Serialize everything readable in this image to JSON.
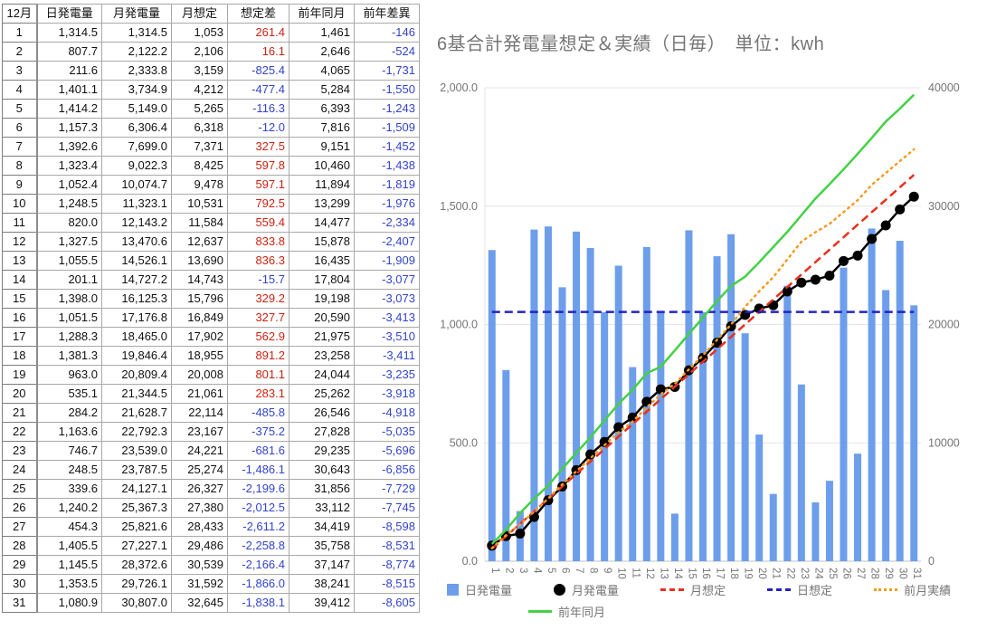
{
  "colors": {
    "positive": "#cc2211",
    "negative": "#3344cc",
    "axis_text": "#757575",
    "grid": "#e3e3e3",
    "axis_line": "#c2c2c2"
  },
  "table": {
    "month_label": "12月",
    "headers": [
      "日発電量",
      "月発電量",
      "月想定",
      "想定差",
      "前年同月",
      "前年差異"
    ],
    "rows": [
      {
        "day": "1",
        "daily": "1,314.5",
        "monthly": "1,314.5",
        "expected": "1,053",
        "diff": "261.4",
        "prev_year": "1,461",
        "prev_diff": "-146"
      },
      {
        "day": "2",
        "daily": "807.7",
        "monthly": "2,122.2",
        "expected": "2,106",
        "diff": "16.1",
        "prev_year": "2,646",
        "prev_diff": "-524"
      },
      {
        "day": "3",
        "daily": "211.6",
        "monthly": "2,333.8",
        "expected": "3,159",
        "diff": "-825.4",
        "prev_year": "4,065",
        "prev_diff": "-1,731"
      },
      {
        "day": "4",
        "daily": "1,401.1",
        "monthly": "3,734.9",
        "expected": "4,212",
        "diff": "-477.4",
        "prev_year": "5,284",
        "prev_diff": "-1,550"
      },
      {
        "day": "5",
        "daily": "1,414.2",
        "monthly": "5,149.0",
        "expected": "5,265",
        "diff": "-116.3",
        "prev_year": "6,393",
        "prev_diff": "-1,243"
      },
      {
        "day": "6",
        "daily": "1,157.3",
        "monthly": "6,306.4",
        "expected": "6,318",
        "diff": "-12.0",
        "prev_year": "7,816",
        "prev_diff": "-1,509"
      },
      {
        "day": "7",
        "daily": "1,392.6",
        "monthly": "7,699.0",
        "expected": "7,371",
        "diff": "327.5",
        "prev_year": "9,151",
        "prev_diff": "-1,452"
      },
      {
        "day": "8",
        "daily": "1,323.4",
        "monthly": "9,022.3",
        "expected": "8,425",
        "diff": "597.8",
        "prev_year": "10,460",
        "prev_diff": "-1,438"
      },
      {
        "day": "9",
        "daily": "1,052.4",
        "monthly": "10,074.7",
        "expected": "9,478",
        "diff": "597.1",
        "prev_year": "11,894",
        "prev_diff": "-1,819"
      },
      {
        "day": "10",
        "daily": "1,248.5",
        "monthly": "11,323.1",
        "expected": "10,531",
        "diff": "792.5",
        "prev_year": "13,299",
        "prev_diff": "-1,976"
      },
      {
        "day": "11",
        "daily": "820.0",
        "monthly": "12,143.2",
        "expected": "11,584",
        "diff": "559.4",
        "prev_year": "14,477",
        "prev_diff": "-2,334"
      },
      {
        "day": "12",
        "daily": "1,327.5",
        "monthly": "13,470.6",
        "expected": "12,637",
        "diff": "833.8",
        "prev_year": "15,878",
        "prev_diff": "-2,407"
      },
      {
        "day": "13",
        "daily": "1,055.5",
        "monthly": "14,526.1",
        "expected": "13,690",
        "diff": "836.3",
        "prev_year": "16,435",
        "prev_diff": "-1,909"
      },
      {
        "day": "14",
        "daily": "201.1",
        "monthly": "14,727.2",
        "expected": "14,743",
        "diff": "-15.7",
        "prev_year": "17,804",
        "prev_diff": "-3,077"
      },
      {
        "day": "15",
        "daily": "1,398.0",
        "monthly": "16,125.3",
        "expected": "15,796",
        "diff": "329.2",
        "prev_year": "19,198",
        "prev_diff": "-3,073"
      },
      {
        "day": "16",
        "daily": "1,051.5",
        "monthly": "17,176.8",
        "expected": "16,849",
        "diff": "327.7",
        "prev_year": "20,590",
        "prev_diff": "-3,413"
      },
      {
        "day": "17",
        "daily": "1,288.3",
        "monthly": "18,465.0",
        "expected": "17,902",
        "diff": "562.9",
        "prev_year": "21,975",
        "prev_diff": "-3,510"
      },
      {
        "day": "18",
        "daily": "1,381.3",
        "monthly": "19,846.4",
        "expected": "18,955",
        "diff": "891.2",
        "prev_year": "23,258",
        "prev_diff": "-3,411"
      },
      {
        "day": "19",
        "daily": "963.0",
        "monthly": "20,809.4",
        "expected": "20,008",
        "diff": "801.1",
        "prev_year": "24,044",
        "prev_diff": "-3,235"
      },
      {
        "day": "20",
        "daily": "535.1",
        "monthly": "21,344.5",
        "expected": "21,061",
        "diff": "283.1",
        "prev_year": "25,262",
        "prev_diff": "-3,918"
      },
      {
        "day": "21",
        "daily": "284.2",
        "monthly": "21,628.7",
        "expected": "22,114",
        "diff": "-485.8",
        "prev_year": "26,546",
        "prev_diff": "-4,918"
      },
      {
        "day": "22",
        "daily": "1,163.6",
        "monthly": "22,792.3",
        "expected": "23,167",
        "diff": "-375.2",
        "prev_year": "27,828",
        "prev_diff": "-5,035"
      },
      {
        "day": "23",
        "daily": "746.7",
        "monthly": "23,539.0",
        "expected": "24,221",
        "diff": "-681.6",
        "prev_year": "29,235",
        "prev_diff": "-5,696"
      },
      {
        "day": "24",
        "daily": "248.5",
        "monthly": "23,787.5",
        "expected": "25,274",
        "diff": "-1,486.1",
        "prev_year": "30,643",
        "prev_diff": "-6,856"
      },
      {
        "day": "25",
        "daily": "339.6",
        "monthly": "24,127.1",
        "expected": "26,327",
        "diff": "-2,199.6",
        "prev_year": "31,856",
        "prev_diff": "-7,729"
      },
      {
        "day": "26",
        "daily": "1,240.2",
        "monthly": "25,367.3",
        "expected": "27,380",
        "diff": "-2,012.5",
        "prev_year": "33,112",
        "prev_diff": "-7,745"
      },
      {
        "day": "27",
        "daily": "454.3",
        "monthly": "25,821.6",
        "expected": "28,433",
        "diff": "-2,611.2",
        "prev_year": "34,419",
        "prev_diff": "-8,598"
      },
      {
        "day": "28",
        "daily": "1,405.5",
        "monthly": "27,227.1",
        "expected": "29,486",
        "diff": "-2,258.8",
        "prev_year": "35,758",
        "prev_diff": "-8,531"
      },
      {
        "day": "29",
        "daily": "1,145.5",
        "monthly": "28,372.6",
        "expected": "30,539",
        "diff": "-2,166.4",
        "prev_year": "37,147",
        "prev_diff": "-8,774"
      },
      {
        "day": "30",
        "daily": "1,353.5",
        "monthly": "29,726.1",
        "expected": "31,592",
        "diff": "-1,866.0",
        "prev_year": "38,241",
        "prev_diff": "-8,515"
      },
      {
        "day": "31",
        "daily": "1,080.9",
        "monthly": "30,807.0",
        "expected": "32,645",
        "diff": "-1,838.1",
        "prev_year": "39,412",
        "prev_diff": "-8,605"
      }
    ]
  },
  "chart_data": {
    "type": "combo-bar-line",
    "title": "6基合計発電量想定＆実績（日毎）　単位：kwh",
    "x": [
      1,
      2,
      3,
      4,
      5,
      6,
      7,
      8,
      9,
      10,
      11,
      12,
      13,
      14,
      15,
      16,
      17,
      18,
      19,
      20,
      21,
      22,
      23,
      24,
      25,
      26,
      27,
      28,
      29,
      30,
      31
    ],
    "left_axis": {
      "ticks": [
        "0.0",
        "500.0",
        "1,000.0",
        "1,500.0",
        "2,000.0"
      ],
      "range": [
        0,
        2000
      ]
    },
    "right_axis": {
      "ticks": [
        "0",
        "10000",
        "20000",
        "30000",
        "40000"
      ],
      "range": [
        0,
        40000
      ]
    },
    "legend_rows": [
      [
        0,
        1,
        2,
        3,
        4
      ],
      [
        5
      ]
    ],
    "series": [
      {
        "id": "daily-generation",
        "name": "日発電量",
        "type": "bar",
        "axis": "left",
        "color": "#6d9eeb",
        "swatch": "square",
        "values": [
          1314.5,
          807.7,
          211.6,
          1401.1,
          1414.2,
          1157.3,
          1392.6,
          1323.4,
          1052.4,
          1248.5,
          820.0,
          1327.5,
          1055.5,
          201.1,
          1398.0,
          1051.5,
          1288.3,
          1381.3,
          963.0,
          535.1,
          284.2,
          1163.6,
          746.7,
          248.5,
          339.6,
          1240.2,
          454.3,
          1405.5,
          1145.5,
          1353.5,
          1080.9
        ]
      },
      {
        "id": "monthly-generation",
        "name": "月発電量",
        "type": "line-marker",
        "axis": "right",
        "color": "#000000",
        "swatch": "circle",
        "values": [
          1314.5,
          2122.2,
          2333.8,
          3734.9,
          5149.0,
          6306.4,
          7699.0,
          9022.3,
          10074.7,
          11323.1,
          12143.2,
          13470.6,
          14526.1,
          14727.2,
          16125.3,
          17176.8,
          18465.0,
          19846.4,
          20809.4,
          21344.5,
          21628.7,
          22792.3,
          23539.0,
          23787.5,
          24127.1,
          25367.3,
          25821.6,
          27227.1,
          28372.6,
          29726.1,
          30807.0
        ]
      },
      {
        "id": "monthly-expected",
        "name": "月想定",
        "type": "line-dashed",
        "axis": "right",
        "color": "#e8301c",
        "swatch": "dashed",
        "values": [
          1053,
          2106,
          3159,
          4212,
          5265,
          6318,
          7371,
          8425,
          9478,
          10531,
          11584,
          12637,
          13690,
          14743,
          15796,
          16849,
          17902,
          18955,
          20008,
          21061,
          22114,
          23167,
          24221,
          25274,
          26327,
          27380,
          28433,
          29486,
          30539,
          31592,
          32645
        ]
      },
      {
        "id": "daily-expected",
        "name": "日想定",
        "type": "line-dashed",
        "axis": "left",
        "color": "#2424c0",
        "swatch": "dashed",
        "values": [
          1053,
          1053,
          1053,
          1053,
          1053,
          1053,
          1053,
          1053,
          1053,
          1053,
          1053,
          1053,
          1053,
          1053,
          1053,
          1053,
          1053,
          1053,
          1053,
          1053,
          1053,
          1053,
          1053,
          1053,
          1053,
          1053,
          1053,
          1053,
          1053,
          1053,
          1053
        ]
      },
      {
        "id": "prev-month-actual",
        "name": "前月実績",
        "type": "line-dotted",
        "axis": "right",
        "color": "#f5991f",
        "swatch": "dotted",
        "values": [
          1100,
          2200,
          3100,
          4200,
          5300,
          6500,
          7600,
          8700,
          9800,
          10900,
          11800,
          13000,
          14100,
          15000,
          16200,
          17400,
          18700,
          20000,
          21500,
          22800,
          24000,
          25500,
          27000,
          27800,
          28500,
          29500,
          30500,
          31800,
          32800,
          33800,
          34800
        ]
      },
      {
        "id": "prev-year-month",
        "name": "前年同月",
        "type": "line",
        "axis": "right",
        "color": "#43d143",
        "swatch": "line",
        "values": [
          1461,
          2646,
          4065,
          5284,
          6393,
          7816,
          9151,
          10460,
          11894,
          13299,
          14477,
          15878,
          16435,
          17804,
          19198,
          20590,
          21975,
          23258,
          24044,
          25262,
          26546,
          27828,
          29235,
          30643,
          31856,
          33112,
          34419,
          35758,
          37147,
          38241,
          39412
        ]
      }
    ]
  }
}
